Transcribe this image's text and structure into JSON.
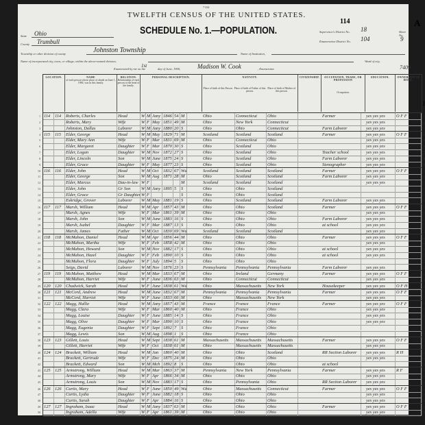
{
  "header": {
    "form_no": "7-224",
    "title": "TWELFTH CENSUS OF THE UNITED STATES.",
    "sheet_page": "114",
    "sheet_letter": "A",
    "schedule": "SCHEDULE No. 1.—POPULATION.",
    "state_label": "State",
    "state": "Ohio",
    "county_label": "County",
    "county": "Trumbull",
    "township_label": "Township or other division of county",
    "township": "Johnston Township",
    "institution_label": "Name of Institution,",
    "city_label": "Name of incorporated city, town, or village, within the above-named division,",
    "ward_label": "Ward of city,",
    "supervisor_label": "Supervisor's District No.",
    "supervisor_district": "18",
    "enumeration_label": "Enumeration District No.",
    "enumeration_district": "104",
    "sheet_label": "Sheet No.",
    "sheet_no": "9",
    "enumerated_prefix": "Enumerated by me on the",
    "enumerated_day": "1st",
    "enumerated_suffix": "day of June, 1900,",
    "enumerator": "Madison W. Cook",
    "enumerator_label": ", Enumerator.",
    "stamp_number": "7409",
    "margin_note": "18"
  },
  "column_groups": {
    "location": "LOCATION.",
    "name": "NAME",
    "name_desc": "of each person whose place of abode on June 1, 1900, was in this family.",
    "relation": "RELATION.",
    "relation_desc": "Relationship of each person to the head of the family.",
    "personal": "PERSONAL DESCRIPTION.",
    "nativity": "NATIVITY.",
    "birth_person": "Place of birth of this Person.",
    "birth_father": "Place of birth of Father of this person.",
    "birth_mother": "Place of birth of Mother of this person.",
    "citizenship": "CITIZENSHIP.",
    "occupation": "OCCUPATION, TRADE, OR PROFESSION",
    "occupation_sub": "Occupation.",
    "education": "EDUCATION.",
    "ownership": "OWNERSHIP OF HOME."
  },
  "rows": [
    {
      "line": "1",
      "dw": "114",
      "fam": "114",
      "name": "Roberts, Charles",
      "rel": "Head",
      "race": "W",
      "sex": "M",
      "mo": "Jany",
      "yr": "1846",
      "age": "54",
      "ms": "M",
      "bp": "Ohio",
      "fbp": "Connecticut",
      "mbp": "Ohio",
      "occ": "Farmer",
      "edu": "yes yes yes",
      "own": "O F F",
      "newfam": true
    },
    {
      "line": "2",
      "name": "Roberts, Mary",
      "rel": "Wife",
      "race": "W",
      "sex": "F",
      "mo": "May",
      "yr": "1851",
      "age": "49",
      "ms": "M",
      "bp": "Ohio",
      "fbp": "New York",
      "mbp": "Connecticut",
      "occ": "",
      "edu": "yes yes yes",
      "own": ""
    },
    {
      "line": "3",
      "name": "Johnston, Dallas",
      "rel": "Laborer",
      "race": "W",
      "sex": "M",
      "mo": "Jany",
      "yr": "1880",
      "age": "20",
      "ms": "S",
      "bp": "Ohio",
      "fbp": "Ohio",
      "mbp": "Connecticut",
      "occ": "Farm Laborer",
      "edu": "yes yes yes",
      "own": ""
    },
    {
      "line": "4",
      "dw": "115",
      "fam": "115",
      "name": "Elder, George",
      "rel": "Head",
      "race": "W",
      "sex": "M",
      "mo": "May",
      "yr": "1829",
      "age": "71",
      "ms": "M",
      "bp": "Scotland",
      "fbp": "Scotland",
      "mbp": "Scotland",
      "occ": "Farmer",
      "edu": "yes yes yes",
      "own": "O F F",
      "newfam": true
    },
    {
      "line": "5",
      "name": "Elder, Mary Ann",
      "rel": "Wife",
      "race": "W",
      "sex": "F",
      "mo": "Mar",
      "yr": "1831",
      "age": "69",
      "ms": "M",
      "bp": "Ohio",
      "fbp": "Connecticut",
      "mbp": "Ohio",
      "occ": "",
      "edu": "yes yes yes",
      "own": ""
    },
    {
      "line": "6",
      "name": "Elder, Margaret",
      "rel": "Daughter",
      "race": "W",
      "sex": "F",
      "mo": "Mar",
      "yr": "1870",
      "age": "30",
      "ms": "S",
      "bp": "Ohio",
      "fbp": "Scotland",
      "mbp": "Ohio",
      "occ": "",
      "edu": "yes yes yes",
      "own": ""
    },
    {
      "line": "7",
      "name": "Elder, Logan",
      "rel": "Daughter",
      "race": "W",
      "sex": "M",
      "mo": "Nov",
      "yr": "1872",
      "age": "27",
      "ms": "S",
      "bp": "Ohio",
      "fbp": "Scotland",
      "mbp": "Ohio",
      "occ": "Teacher school",
      "edu": "yes yes yes",
      "own": ""
    },
    {
      "line": "8",
      "name": "Elder, Lincoln",
      "rel": "Son",
      "race": "W",
      "sex": "M",
      "mo": "June",
      "yr": "1875",
      "age": "24",
      "ms": "S",
      "bp": "Ohio",
      "fbp": "Scotland",
      "mbp": "Ohio",
      "occ": "Farm Laborer",
      "edu": "yes yes yes",
      "own": ""
    },
    {
      "line": "9",
      "name": "Elder, Grace",
      "rel": "Daughter",
      "race": "W",
      "sex": "F",
      "mo": "May",
      "yr": "1877",
      "age": "23",
      "ms": "S",
      "bp": "Ohio",
      "fbp": "Scotland",
      "mbp": "Ohio",
      "occ": "Stenographer",
      "edu": "yes yes yes",
      "own": ""
    },
    {
      "line": "10",
      "dw": "116",
      "fam": "116",
      "name": "Elder, John",
      "rel": "Head",
      "race": "W",
      "sex": "M",
      "mo": "Oct",
      "yr": "1832",
      "age": "67",
      "ms": "Wd",
      "bp": "Scotland",
      "fbp": "Scotland",
      "mbp": "Scotland",
      "occ": "Farmer",
      "edu": "yes yes yes",
      "own": "O F F",
      "newfam": true
    },
    {
      "line": "11",
      "name": "Elder, George",
      "rel": "Son",
      "race": "W",
      "sex": "M",
      "mo": "Aug",
      "yr": "1871",
      "age": "28",
      "ms": "M",
      "bp": "Ohio",
      "fbp": "Scotland",
      "mbp": "Scotland",
      "occ": "Farm Laborer",
      "edu": "yes yes yes",
      "own": ""
    },
    {
      "line": "12",
      "name": "Elder, Marcus",
      "rel": "Dau-in-law",
      "race": "W",
      "sex": "F",
      "mo": "",
      "yr": "",
      "age": "",
      "ms": "M",
      "bp": "Scotland",
      "fbp": "Scotland",
      "mbp": "Scotland",
      "occ": "",
      "edu": "yes yes yes",
      "own": ""
    },
    {
      "line": "13",
      "name": "Elder, John",
      "rel": "Gr Son",
      "race": "W",
      "sex": "M",
      "mo": "Jany",
      "yr": "1895",
      "age": "5",
      "ms": "S",
      "bp": "Ohio",
      "fbp": "Ohio",
      "mbp": "Scotland",
      "occ": "",
      "edu": "",
      "own": ""
    },
    {
      "line": "14",
      "name": "Elder, Grace",
      "rel": "Gr Daughter",
      "race": "W",
      "sex": "F",
      "mo": "",
      "yr": "",
      "age": "",
      "ms": "S",
      "bp": "Ohio",
      "fbp": "Ohio",
      "mbp": "Scotland",
      "occ": "",
      "edu": "",
      "own": ""
    },
    {
      "line": "15",
      "name": "Eskridge, Grover",
      "rel": "Laborer",
      "race": "W",
      "sex": "M",
      "mo": "May",
      "yr": "1881",
      "age": "19",
      "ms": "S",
      "bp": "Ohio",
      "fbp": "Scotland",
      "mbp": "Scotland",
      "occ": "Farm Laborer",
      "edu": "yes yes yes",
      "own": ""
    },
    {
      "line": "16",
      "dw": "117",
      "fam": "117",
      "name": "Marsh, William",
      "rel": "Head",
      "race": "W",
      "sex": "M",
      "mo": "Apr",
      "yr": "1857",
      "age": "43",
      "ms": "M",
      "bp": "Ohio",
      "fbp": "Ohio",
      "mbp": "Scotland",
      "occ": "Farmer",
      "edu": "yes yes yes",
      "own": "O F F",
      "newfam": true
    },
    {
      "line": "17",
      "name": "Marsh, Agnes",
      "rel": "Wife",
      "race": "W",
      "sex": "F",
      "mo": "Mar",
      "yr": "1861",
      "age": "39",
      "ms": "M",
      "bp": "Ohio",
      "fbp": "Ohio",
      "mbp": "Ohio",
      "occ": "",
      "edu": "yes yes yes",
      "own": ""
    },
    {
      "line": "18",
      "name": "Marsh, John",
      "rel": "Son",
      "race": "W",
      "sex": "M",
      "mo": "June",
      "yr": "1883",
      "age": "16",
      "ms": "S",
      "bp": "Ohio",
      "fbp": "Ohio",
      "mbp": "Ohio",
      "occ": "Farm Laborer",
      "edu": "yes yes yes",
      "own": ""
    },
    {
      "line": "19",
      "name": "Marsh, Isabel",
      "rel": "Daughter",
      "race": "W",
      "sex": "F",
      "mo": "Mar",
      "yr": "1887",
      "age": "13",
      "ms": "S",
      "bp": "Ohio",
      "fbp": "Ohio",
      "mbp": "Ohio",
      "occ": "at school",
      "edu": "yes yes yes",
      "own": ""
    },
    {
      "line": "20",
      "name": "Marsh, James",
      "rel": "Father",
      "race": "W",
      "sex": "M",
      "mo": "Oct",
      "yr": "1830",
      "age": "69",
      "ms": "Wd",
      "bp": "Scotland",
      "fbp": "Scotland",
      "mbp": "Scotland",
      "occ": "",
      "edu": "yes yes yes",
      "own": ""
    },
    {
      "line": "21",
      "dw": "118",
      "fam": "118",
      "name": "McMahon, Daniel",
      "rel": "Head",
      "race": "W",
      "sex": "M",
      "mo": "Apr",
      "yr": "1856",
      "age": "44",
      "ms": "M",
      "bp": "Ohio",
      "fbp": "Ohio",
      "mbp": "Ohio",
      "occ": "Farmer",
      "edu": "yes yes yes",
      "own": "O F F",
      "newfam": true
    },
    {
      "line": "22",
      "name": "McMahon, Martha",
      "rel": "Wife",
      "race": "W",
      "sex": "F",
      "mo": "Feb",
      "yr": "1858",
      "age": "42",
      "ms": "M",
      "bp": "Ohio",
      "fbp": "Ohio",
      "mbp": "Ohio",
      "occ": "",
      "edu": "yes yes yes",
      "own": ""
    },
    {
      "line": "23",
      "name": "McMahon, Howard",
      "rel": "Son",
      "race": "W",
      "sex": "M",
      "mo": "Nov",
      "yr": "1882",
      "age": "17",
      "ms": "S",
      "bp": "Ohio",
      "fbp": "Ohio",
      "mbp": "Ohio",
      "occ": "at school",
      "edu": "yes yes yes",
      "own": ""
    },
    {
      "line": "24",
      "name": "McMahon, Hazel",
      "rel": "Daughter",
      "race": "W",
      "sex": "F",
      "mo": "Feb",
      "yr": "1890",
      "age": "10",
      "ms": "S",
      "bp": "Ohio",
      "fbp": "Ohio",
      "mbp": "Ohio",
      "occ": "at school",
      "edu": "yes yes yes",
      "own": ""
    },
    {
      "line": "25",
      "name": "McMahon, Flora",
      "rel": "Daughter",
      "race": "W",
      "sex": "F",
      "mo": "July",
      "yr": "1894",
      "age": "5",
      "ms": "S",
      "bp": "Ohio",
      "fbp": "Ohio",
      "mbp": "Ohio",
      "occ": "",
      "edu": "",
      "own": ""
    },
    {
      "line": "26",
      "name": "Seigs, David",
      "rel": "Laborer",
      "race": "W",
      "sex": "M",
      "mo": "Nov",
      "yr": "1876",
      "age": "23",
      "ms": "S",
      "bp": "Pennsylvania",
      "fbp": "Pennsylvania",
      "mbp": "Pennsylvania",
      "occ": "Farm Laborer",
      "edu": "yes yes yes",
      "own": ""
    },
    {
      "line": "27",
      "dw": "119",
      "fam": "119",
      "name": "McMahon, Matthew",
      "rel": "Head",
      "race": "W",
      "sex": "M",
      "mo": "Mar",
      "yr": "1833",
      "age": "67",
      "ms": "M",
      "bp": "Ohio",
      "fbp": "Ireland",
      "mbp": "Germany",
      "occ": "Farmer",
      "edu": "yes yes yes",
      "own": "O F F",
      "newfam": true
    },
    {
      "line": "28",
      "name": "McMahon, Harriet",
      "rel": "Wife",
      "race": "W",
      "sex": "F",
      "mo": "June",
      "yr": "1836",
      "age": "63",
      "ms": "M",
      "bp": "Ohio",
      "fbp": "Connecticut",
      "mbp": "Connecticut",
      "occ": "",
      "edu": "yes yes yes",
      "own": ""
    },
    {
      "line": "29",
      "dw": "120",
      "fam": "120",
      "name": "Chadwick, Sarah",
      "rel": "Head",
      "race": "W",
      "sex": "F",
      "mo": "June",
      "yr": "1838",
      "age": "61",
      "ms": "Wd",
      "bp": "Ohio",
      "fbp": "Massachusetts",
      "mbp": "New York",
      "occ": "Housekeeper",
      "edu": "yes yes yes",
      "own": "O F H",
      "newfam": true
    },
    {
      "line": "30",
      "dw": "121",
      "fam": "121",
      "name": "McCord, Andrew",
      "rel": "Head",
      "race": "W",
      "sex": "M",
      "mo": "June",
      "yr": "1832",
      "age": "67",
      "ms": "M",
      "bp": "Pennsylvania",
      "fbp": "Pennsylvania",
      "mbp": "Pennsylvania",
      "occ": "Farmer",
      "edu": "yes yes yes",
      "own": "O F F",
      "newfam": true
    },
    {
      "line": "31",
      "name": "McCord, Harriet",
      "rel": "Wife",
      "race": "W",
      "sex": "F",
      "mo": "June",
      "yr": "1833",
      "age": "66",
      "ms": "M",
      "bp": "Ohio",
      "fbp": "Massachusetts",
      "mbp": "New York",
      "occ": "",
      "edu": "yes yes yes",
      "own": ""
    },
    {
      "line": "32",
      "dw": "122",
      "fam": "122",
      "name": "Magg, Hallie",
      "rel": "Head",
      "race": "W",
      "sex": "M",
      "mo": "Jany",
      "yr": "1857",
      "age": "43",
      "ms": "M",
      "bp": "France",
      "fbp": "France",
      "mbp": "France",
      "occ": "Farmer",
      "edu": "yes yes yes",
      "own": "O F F",
      "newfam": true
    },
    {
      "line": "33",
      "name": "Magg, Clara",
      "rel": "Wife",
      "race": "W",
      "sex": "F",
      "mo": "Mar",
      "yr": "1860",
      "age": "40",
      "ms": "M",
      "bp": "Ohio",
      "fbp": "France",
      "mbp": "Ohio",
      "occ": "",
      "edu": "yes yes yes",
      "own": ""
    },
    {
      "line": "34",
      "name": "Magg, Louise",
      "rel": "Daughter",
      "race": "W",
      "sex": "F",
      "mo": "June",
      "yr": "1885",
      "age": "14",
      "ms": "S",
      "bp": "Ohio",
      "fbp": "France",
      "mbp": "Ohio",
      "occ": "",
      "edu": "yes yes yes",
      "own": ""
    },
    {
      "line": "35",
      "name": "Magg, Olive",
      "rel": "Daughter",
      "race": "W",
      "sex": "F",
      "mo": "Mar",
      "yr": "1890",
      "age": "10",
      "ms": "S",
      "bp": "Ohio",
      "fbp": "France",
      "mbp": "Ohio",
      "occ": "",
      "edu": "yes yes yes",
      "own": ""
    },
    {
      "line": "36",
      "name": "Magg, Eugenia",
      "rel": "Daughter",
      "race": "W",
      "sex": "F",
      "mo": "Sept",
      "yr": "1892",
      "age": "7",
      "ms": "S",
      "bp": "Ohio",
      "fbp": "France",
      "mbp": "Ohio",
      "occ": "",
      "edu": "",
      "own": ""
    },
    {
      "line": "37",
      "name": "Magg, Lewis",
      "rel": "Son",
      "race": "W",
      "sex": "M",
      "mo": "Aug",
      "yr": "1898",
      "age": "1",
      "ms": "S",
      "bp": "Ohio",
      "fbp": "France",
      "mbp": "Ohio",
      "occ": "",
      "edu": "",
      "own": ""
    },
    {
      "line": "38",
      "dw": "123",
      "fam": "123",
      "name": "Gillett, Louis",
      "rel": "Head",
      "race": "W",
      "sex": "M",
      "mo": "Sept",
      "yr": "1838",
      "age": "61",
      "ms": "M",
      "bp": "Massachusetts",
      "fbp": "Massachusetts",
      "mbp": "Massachusetts",
      "occ": "Farmer",
      "edu": "yes yes yes",
      "own": "O F F",
      "newfam": true
    },
    {
      "line": "39",
      "name": "Gillett, Harriet",
      "rel": "Wife",
      "race": "W",
      "sex": "F",
      "mo": "Oct",
      "yr": "1838",
      "age": "61",
      "ms": "M",
      "bp": "Ohio",
      "fbp": "Massachusetts",
      "mbp": "Massachusetts",
      "occ": "",
      "edu": "yes yes yes",
      "own": ""
    },
    {
      "line": "40",
      "dw": "124",
      "fam": "124",
      "name": "Brackett, William",
      "rel": "Head",
      "race": "W",
      "sex": "M",
      "mo": "Jan",
      "yr": "1860",
      "age": "40",
      "ms": "M",
      "bp": "Ohio",
      "fbp": "Ohio",
      "mbp": "Scotland",
      "occ": "RR Section Laborer",
      "edu": "yes yes yes",
      "own": "R H",
      "newfam": true
    },
    {
      "line": "41",
      "name": "Brackett, Gertrude",
      "rel": "Wife",
      "race": "W",
      "sex": "F",
      "mo": "Dec",
      "yr": "1875",
      "age": "24",
      "ms": "M",
      "bp": "Ohio",
      "fbp": "Ohio",
      "mbp": "Ohio",
      "occ": "",
      "edu": "yes yes yes",
      "own": ""
    },
    {
      "line": "42",
      "name": "Brackett, Edward",
      "rel": "Son",
      "race": "W",
      "sex": "M",
      "mo": "Mch",
      "yr": "1892",
      "age": "8",
      "ms": "S",
      "bp": "Ohio",
      "fbp": "Ohio",
      "mbp": "Ohio",
      "occ": "at school",
      "edu": "",
      "own": ""
    },
    {
      "line": "43",
      "dw": "125",
      "fam": "125",
      "name": "Armstrong, William",
      "rel": "Head",
      "race": "W",
      "sex": "M",
      "mo": "Mar",
      "yr": "1863",
      "age": "37",
      "ms": "M",
      "bp": "Pennsylvania",
      "fbp": "New York",
      "mbp": "Pennsylvania",
      "occ": "Farmer",
      "edu": "yes yes yes",
      "own": "R F",
      "newfam": true
    },
    {
      "line": "44",
      "name": "Armstrong, Mary",
      "rel": "Wife",
      "race": "W",
      "sex": "F",
      "mo": "Apr",
      "yr": "1866",
      "age": "34",
      "ms": "M",
      "bp": "Ohio",
      "fbp": "Ohio",
      "mbp": "Ohio",
      "occ": "",
      "edu": "yes yes yes",
      "own": ""
    },
    {
      "line": "45",
      "name": "Armstrong, Louis",
      "rel": "Son",
      "race": "W",
      "sex": "M",
      "mo": "Nov",
      "yr": "1883",
      "age": "17",
      "ms": "S",
      "bp": "Ohio",
      "fbp": "Pennsylvania",
      "mbp": "Ohio",
      "occ": "RR Section Laborer",
      "edu": "yes yes yes",
      "own": ""
    },
    {
      "line": "46",
      "dw": "126",
      "fam": "126",
      "name": "Curtis, Mary",
      "rel": "Head",
      "race": "W",
      "sex": "F",
      "mo": "June",
      "yr": "1850",
      "age": "49",
      "ms": "Wd",
      "bp": "Ohio",
      "fbp": "Massachusetts",
      "mbp": "Connecticut",
      "occ": "Farmer",
      "edu": "yes yes yes",
      "own": "O F F",
      "newfam": true
    },
    {
      "line": "47",
      "name": "Curtis, Lydia",
      "rel": "Daughter",
      "race": "W",
      "sex": "F",
      "mo": "June",
      "yr": "1882",
      "age": "18",
      "ms": "S",
      "bp": "Ohio",
      "fbp": "Ohio",
      "mbp": "Ohio",
      "occ": "",
      "edu": "yes yes yes",
      "own": ""
    },
    {
      "line": "48",
      "name": "Curtis, Sarah",
      "rel": "Daughter",
      "race": "W",
      "sex": "F",
      "mo": "Apr",
      "yr": "1884",
      "age": "16",
      "ms": "S",
      "bp": "Ohio",
      "fbp": "Ohio",
      "mbp": "Ohio",
      "occ": "",
      "edu": "yes yes yes",
      "own": ""
    },
    {
      "line": "49",
      "dw": "127",
      "fam": "127",
      "name": "Ingraham, Isaac",
      "rel": "Head",
      "race": "W",
      "sex": "M",
      "mo": "Jany",
      "yr": "1837",
      "age": "63",
      "ms": "M",
      "bp": "Ohio",
      "fbp": "Ohio",
      "mbp": "Ohio",
      "occ": "Farmer",
      "edu": "yes yes yes",
      "own": "O F F",
      "newfam": true
    },
    {
      "line": "50",
      "name": "Ingraham, Adella",
      "rel": "Wife",
      "race": "W",
      "sex": "F",
      "mo": "Apr",
      "yr": "1861",
      "age": "39",
      "ms": "M",
      "bp": "Ohio",
      "fbp": "Ohio",
      "mbp": "Ohio",
      "occ": "",
      "edu": "yes yes yes",
      "own": ""
    }
  ]
}
